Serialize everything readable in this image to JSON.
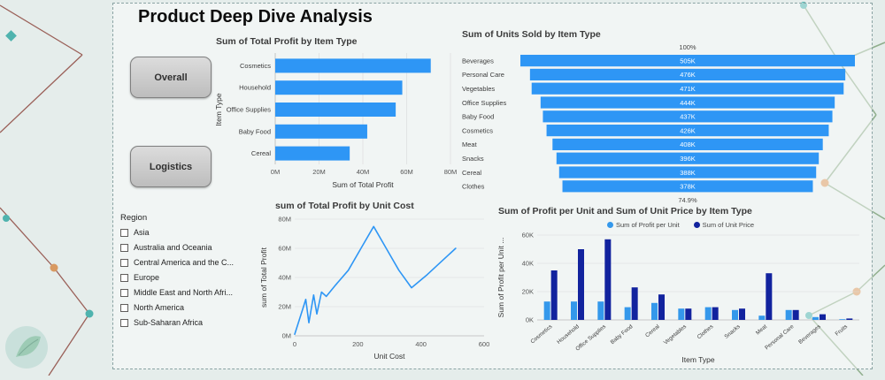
{
  "page": {
    "title": "Product Deep Dive Analysis"
  },
  "nav": {
    "overall": "Overall",
    "logistics": "Logistics"
  },
  "slicer": {
    "title": "Region",
    "items": [
      "Asia",
      "Australia and Oceania",
      "Central America and the C...",
      "Europe",
      "Middle East and North Afri...",
      "North America",
      "Sub-Saharan Africa"
    ]
  },
  "colors": {
    "primary": "#2E96F5",
    "series_light": "#3498EB",
    "series_dark": "#12239E",
    "grid": "#d9d9d9",
    "axis": "#bdbdbd"
  },
  "chart_data": [
    {
      "type": "bar",
      "orientation": "horizontal",
      "title": "Sum of Total Profit by Item Type",
      "categories": [
        "Cosmetics",
        "Household",
        "Office Supplies",
        "Baby Food",
        "Cereal"
      ],
      "values": [
        71,
        58,
        55,
        42,
        34
      ],
      "unit": "M",
      "xlabel": "Sum of Total Profit",
      "ylabel": "Item Type",
      "xlim": [
        0,
        80
      ],
      "xticks": [
        "0M",
        "20M",
        "40M",
        "60M",
        "80M"
      ],
      "grid": true
    },
    {
      "type": "funnel",
      "title": "Sum of Units Sold by Item Type",
      "categories": [
        "Beverages",
        "Personal Care",
        "Vegetables",
        "Office Supplies",
        "Baby Food",
        "Cosmetics",
        "Meat",
        "Snacks",
        "Cereal",
        "Clothes"
      ],
      "values": [
        505,
        476,
        471,
        444,
        437,
        426,
        408,
        396,
        388,
        378
      ],
      "value_labels": [
        "505K",
        "476K",
        "471K",
        "444K",
        "437K",
        "426K",
        "408K",
        "396K",
        "388K",
        "378K"
      ],
      "top_label": "100%",
      "bottom_label": "74.9%"
    },
    {
      "type": "line",
      "title": "sum of Total Profit by Unit Cost",
      "x": [
        0,
        25,
        35,
        45,
        60,
        70,
        85,
        100,
        130,
        170,
        210,
        250,
        290,
        330,
        370,
        420,
        470,
        510
      ],
      "y": [
        1,
        18,
        25,
        9,
        28,
        15,
        30,
        27,
        35,
        45,
        60,
        75,
        60,
        45,
        33,
        42,
        52,
        60
      ],
      "xlabel": "Unit Cost",
      "ylabel": "sum of Total Profit",
      "xlim": [
        0,
        600
      ],
      "ylim": [
        0,
        80
      ],
      "xticks": [
        "0",
        "200",
        "400",
        "600"
      ],
      "yticks": [
        "0M",
        "20M",
        "40M",
        "60M",
        "80M"
      ],
      "grid": true
    },
    {
      "type": "bar",
      "orientation": "vertical",
      "title": "Sum of Profit per Unit and Sum of Unit Price by Item Type",
      "categories": [
        "Cosmetics",
        "Household",
        "Office Supplies",
        "Baby Food",
        "Cereal",
        "Vegetables",
        "Clothes",
        "Snacks",
        "Meat",
        "Personal Care",
        "Beverages",
        "Fruits"
      ],
      "series": [
        {
          "name": "Sum of Profit per Unit",
          "values": [
            13,
            13,
            13,
            9,
            12,
            8,
            9,
            7,
            3,
            7,
            2,
            0.5
          ]
        },
        {
          "name": "Sum of Unit Price",
          "values": [
            35,
            50,
            57,
            23,
            18,
            8,
            9,
            8,
            33,
            7,
            4,
            1
          ]
        }
      ],
      "xlabel": "Item Type",
      "ylabel": "Sum of Profit per Unit ...",
      "ylim": [
        0,
        60
      ],
      "yticks": [
        "0K",
        "20K",
        "40K",
        "60K"
      ],
      "legend_position": "top",
      "grid": true
    }
  ]
}
